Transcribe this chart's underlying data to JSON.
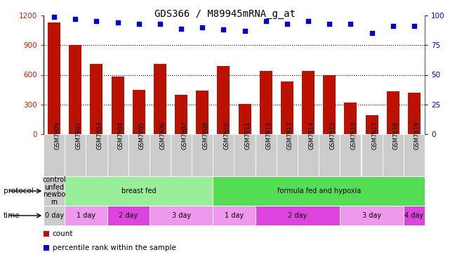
{
  "title": "GDS366 / M89945mRNA_g_at",
  "samples": [
    "GSM7609",
    "GSM7602",
    "GSM7603",
    "GSM7604",
    "GSM7605",
    "GSM7606",
    "GSM7607",
    "GSM7608",
    "GSM7610",
    "GSM7611",
    "GSM7612",
    "GSM7613",
    "GSM7614",
    "GSM7615",
    "GSM7616",
    "GSM7617",
    "GSM7618",
    "GSM7619"
  ],
  "counts": [
    1130,
    900,
    710,
    580,
    450,
    710,
    400,
    440,
    690,
    305,
    640,
    535,
    640,
    595,
    320,
    195,
    430,
    420
  ],
  "percentiles": [
    99,
    97,
    95,
    94,
    93,
    93,
    89,
    90,
    88,
    87,
    95,
    93,
    95,
    93,
    93,
    85,
    91,
    91
  ],
  "ylim_left": [
    0,
    1200
  ],
  "ylim_right": [
    0,
    100
  ],
  "yticks_left": [
    0,
    300,
    600,
    900,
    1200
  ],
  "yticks_right": [
    0,
    25,
    50,
    75,
    100
  ],
  "bar_color": "#bb1100",
  "dot_color": "#0000cc",
  "bg_color": "#ffffff",
  "grid_color": "#000000",
  "xtick_bg": "#cccccc",
  "protocol_groups": [
    {
      "label": "control\nunfed\nnewbo\nrn",
      "start": 0,
      "end": 1,
      "color": "#cccccc"
    },
    {
      "label": "breast fed",
      "start": 1,
      "end": 8,
      "color": "#99ee99"
    },
    {
      "label": "formula fed and hypoxia",
      "start": 8,
      "end": 18,
      "color": "#55dd55"
    }
  ],
  "time_groups": [
    {
      "label": "0 day",
      "start": 0,
      "end": 1,
      "color": "#cccccc"
    },
    {
      "label": "1 day",
      "start": 1,
      "end": 3,
      "color": "#ee99ee"
    },
    {
      "label": "2 day",
      "start": 3,
      "end": 5,
      "color": "#dd44dd"
    },
    {
      "label": "3 day",
      "start": 5,
      "end": 8,
      "color": "#ee99ee"
    },
    {
      "label": "1 day",
      "start": 8,
      "end": 10,
      "color": "#ee99ee"
    },
    {
      "label": "2 day",
      "start": 10,
      "end": 14,
      "color": "#dd44dd"
    },
    {
      "label": "3 day",
      "start": 14,
      "end": 17,
      "color": "#ee99ee"
    },
    {
      "label": "4 day",
      "start": 17,
      "end": 18,
      "color": "#dd44dd"
    }
  ],
  "legend_count_color": "#bb1100",
  "legend_dot_color": "#0000cc",
  "title_fontsize": 10,
  "tick_fontsize": 7.5,
  "bar_tick_color": "#cc2200",
  "right_tick_color": "#0000cc"
}
